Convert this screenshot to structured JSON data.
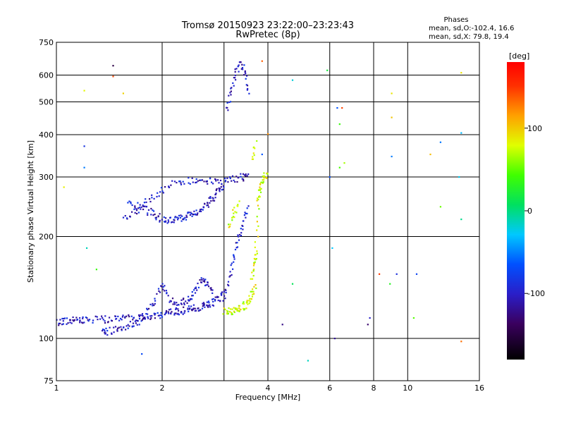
{
  "title": {
    "line1": "Tromsø 20150923 23:22:00–23:23:43",
    "line2": "RwPretec (8p)"
  },
  "phase_stats": {
    "heading": "Phases",
    "line_o": "mean, sd,O:-102.4, 16.6",
    "line_x": "mean, sd,X:  79.8, 19.4"
  },
  "chart_data": {
    "type": "scatter",
    "xlabel": "Frequency [MHz]",
    "ylabel": "Stationary phase Virtual Height [km]",
    "x_scale": "log",
    "y_scale": "log",
    "xlim": [
      1,
      16
    ],
    "ylim": [
      75,
      750
    ],
    "grid": true,
    "x_ticks": [
      1,
      2,
      4,
      6,
      8,
      10,
      16
    ],
    "x_tick_labels": [
      "1",
      "2",
      "4",
      "6",
      "8",
      "10",
      "16"
    ],
    "x_gridlines": [
      2,
      3,
      4,
      6,
      8,
      10
    ],
    "y_ticks": [
      75,
      100,
      200,
      300,
      400,
      500,
      600,
      750
    ],
    "y_tick_labels": [
      "75",
      "100",
      "200",
      "300",
      "400",
      "500",
      "600",
      "750"
    ],
    "colorbar": {
      "label": "[deg]",
      "range": [
        -180,
        180
      ],
      "ticks": [
        100,
        0,
        -100
      ],
      "tick_labels": [
        "100",
        "0",
        "-100"
      ]
    },
    "series": [
      {
        "mode": "O",
        "phase_mean_deg": -102.4,
        "traces": [
          {
            "x": [
              1.0,
              1.05,
              1.1,
              1.15,
              1.2,
              1.3,
              1.4,
              1.5,
              1.6,
              1.7,
              1.8,
              1.9,
              2.0,
              2.1,
              2.2,
              2.3,
              2.4,
              2.5,
              2.6,
              2.7,
              2.8,
              2.9,
              3.0
            ],
            "y": [
              112,
              112,
              113,
              113,
              114,
              114,
              114,
              114,
              115,
              115,
              116,
              117,
              118,
              119,
              120,
              121,
              122,
              123,
              124,
              126,
              128,
              131,
              136
            ]
          },
          {
            "x": [
              1.35,
              1.4,
              1.5,
              1.6,
              1.7,
              1.8,
              1.9,
              2.0,
              2.1,
              2.2,
              2.3,
              2.4,
              2.5,
              2.6,
              2.7,
              2.8
            ],
            "y": [
              104,
              105,
              107,
              109,
              112,
              118,
              128,
              145,
              130,
              125,
              128,
              132,
              140,
              150,
              145,
              138
            ]
          },
          {
            "x": [
              1.6,
              1.7,
              1.8,
              1.9,
              2.0,
              2.1,
              2.2,
              2.3,
              2.4,
              2.5,
              2.6,
              2.7,
              2.8,
              2.9,
              3.0
            ],
            "y": [
              250,
              245,
              240,
              232,
              225,
              222,
              226,
              228,
              232,
              236,
              242,
              250,
              262,
              272,
              282
            ]
          },
          {
            "x": [
              1.55,
              1.7,
              1.85,
              2.0,
              2.2,
              2.4,
              2.6,
              2.8,
              3.0,
              3.2,
              3.4,
              3.5
            ],
            "y": [
              225,
              238,
              260,
              275,
              288,
              293,
              292,
              290,
              292,
              295,
              300,
              305
            ]
          },
          {
            "x": [
              3.0,
              3.1,
              3.2,
              3.3,
              3.4,
              3.5
            ],
            "y": [
              130,
              150,
              175,
              200,
              220,
              245
            ]
          },
          {
            "x": [
              3.05,
              3.15,
              3.25,
              3.35,
              3.45,
              3.55
            ],
            "y": [
              470,
              540,
              610,
              650,
              600,
              520
            ]
          }
        ]
      },
      {
        "mode": "X",
        "phase_mean_deg": 79.8,
        "traces": [
          {
            "x": [
              3.0,
              3.1,
              3.2,
              3.3,
              3.4,
              3.5,
              3.6,
              3.7
            ],
            "y": [
              120,
              120,
              121,
              122,
              124,
              128,
              135,
              145
            ]
          },
          {
            "x": [
              3.6,
              3.65,
              3.7,
              3.75,
              3.8,
              3.85,
              3.9,
              4.0
            ],
            "y": [
              150,
              165,
              180,
              250,
              275,
              290,
              300,
              302
            ]
          },
          {
            "x": [
              3.1,
              3.2,
              3.3
            ],
            "y": [
              215,
              235,
              250
            ]
          },
          {
            "x": [
              3.6,
              3.7
            ],
            "y": [
              340,
              380
            ]
          }
        ]
      },
      {
        "mode": "sporadic",
        "points": [
          {
            "x": 1.05,
            "y": 280
          },
          {
            "x": 1.2,
            "y": 540
          },
          {
            "x": 1.2,
            "y": 370
          },
          {
            "x": 1.2,
            "y": 320
          },
          {
            "x": 1.22,
            "y": 185
          },
          {
            "x": 1.3,
            "y": 160
          },
          {
            "x": 1.45,
            "y": 640
          },
          {
            "x": 1.45,
            "y": 595
          },
          {
            "x": 1.55,
            "y": 530
          },
          {
            "x": 1.75,
            "y": 90
          },
          {
            "x": 3.85,
            "y": 350
          },
          {
            "x": 3.85,
            "y": 660
          },
          {
            "x": 4.0,
            "y": 402
          },
          {
            "x": 4.4,
            "y": 110
          },
          {
            "x": 4.7,
            "y": 145
          },
          {
            "x": 4.7,
            "y": 580
          },
          {
            "x": 5.2,
            "y": 86
          },
          {
            "x": 5.9,
            "y": 620
          },
          {
            "x": 6.0,
            "y": 300
          },
          {
            "x": 6.1,
            "y": 185
          },
          {
            "x": 6.2,
            "y": 100
          },
          {
            "x": 6.3,
            "y": 480
          },
          {
            "x": 6.4,
            "y": 430
          },
          {
            "x": 6.4,
            "y": 320
          },
          {
            "x": 6.5,
            "y": 480
          },
          {
            "x": 6.6,
            "y": 330
          },
          {
            "x": 7.7,
            "y": 110
          },
          {
            "x": 7.8,
            "y": 115
          },
          {
            "x": 8.3,
            "y": 155
          },
          {
            "x": 8.9,
            "y": 145
          },
          {
            "x": 9.0,
            "y": 450
          },
          {
            "x": 9.0,
            "y": 530
          },
          {
            "x": 9.0,
            "y": 345
          },
          {
            "x": 9.3,
            "y": 155
          },
          {
            "x": 10.4,
            "y": 115
          },
          {
            "x": 10.6,
            "y": 155
          },
          {
            "x": 11.6,
            "y": 350
          },
          {
            "x": 12.4,
            "y": 245
          },
          {
            "x": 12.4,
            "y": 380
          },
          {
            "x": 14.0,
            "y": 300
          },
          {
            "x": 14.2,
            "y": 405
          },
          {
            "x": 14.2,
            "y": 610
          },
          {
            "x": 14.2,
            "y": 225
          },
          {
            "x": 14.2,
            "y": 98
          }
        ]
      }
    ]
  }
}
